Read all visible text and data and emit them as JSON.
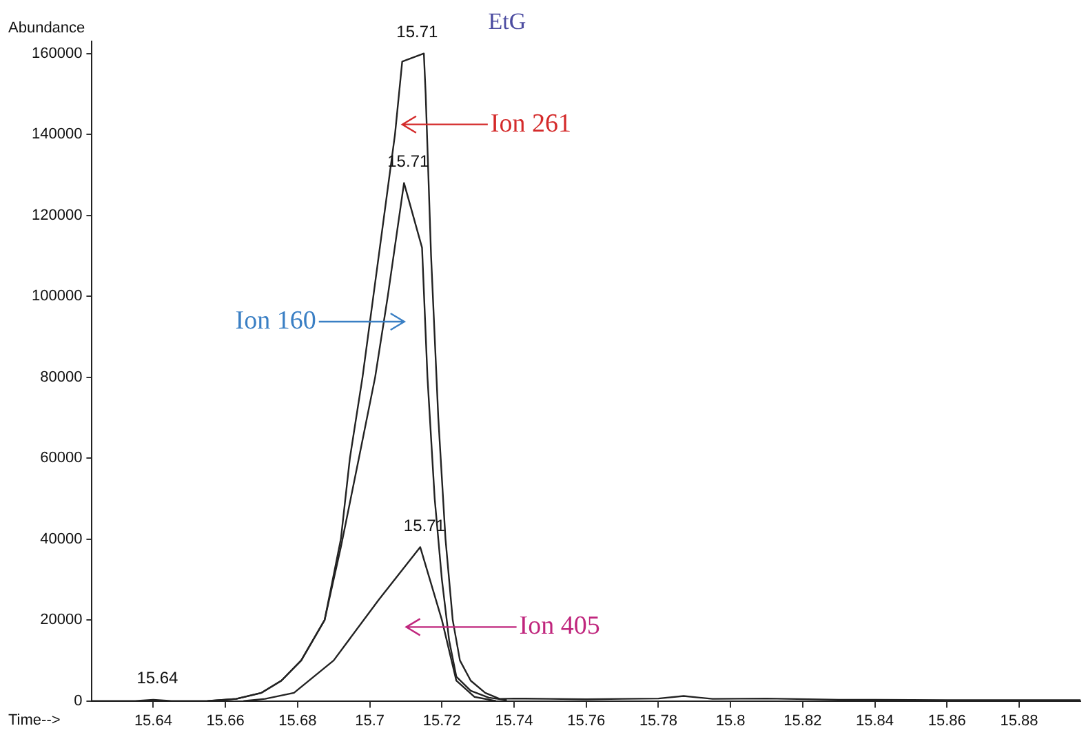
{
  "chart_data": {
    "type": "line",
    "title": "EtG",
    "xlabel": "Time-->",
    "ylabel": "Abundance",
    "xlim": [
      15.623,
      15.897
    ],
    "xticks": [
      15.64,
      15.66,
      15.68,
      15.7,
      15.72,
      15.74,
      15.76,
      15.78,
      15.8,
      15.82,
      15.84,
      15.86,
      15.88
    ],
    "ylim": [
      0,
      163000
    ],
    "yticks": [
      0,
      20000,
      40000,
      60000,
      80000,
      100000,
      120000,
      140000,
      160000
    ],
    "grid": false,
    "legend": false,
    "marker": "none",
    "line_style": "solid",
    "series": [
      {
        "name": "Ion 261",
        "color": "#222222",
        "x": [
          15.623,
          15.635,
          15.64,
          15.645,
          15.655,
          15.663,
          15.67,
          15.6755,
          15.681,
          15.6875,
          15.692,
          15.6945,
          15.698,
          15.701,
          15.707,
          15.709,
          15.715,
          15.7155,
          15.717,
          15.719,
          15.721,
          15.723,
          15.725,
          15.728,
          15.732,
          15.736,
          15.74,
          15.75,
          15.76,
          15.77,
          15.78,
          15.787,
          15.795,
          15.81,
          15.83,
          15.86,
          15.897
        ],
        "values": [
          0,
          0,
          300,
          0,
          0,
          500,
          2000,
          5000,
          10000,
          20000,
          40000,
          60000,
          80000,
          100000,
          140000,
          158000,
          160000,
          150000,
          110000,
          70000,
          40000,
          20000,
          10000,
          5000,
          2000,
          500,
          600,
          500,
          400,
          500,
          600,
          1200,
          500,
          600,
          300,
          200,
          200
        ]
      },
      {
        "color": "#222222",
        "x": [
          15.655,
          15.663,
          15.67,
          15.6755,
          15.681,
          15.6875,
          15.692,
          15.697,
          15.7015,
          15.705,
          15.7095,
          15.7145,
          15.716,
          15.718,
          15.72,
          15.722,
          15.724,
          15.728,
          15.733,
          15.738
        ],
        "values": [
          0,
          500,
          2000,
          5000,
          10000,
          20000,
          38000,
          60000,
          80000,
          100000,
          128000,
          112000,
          80000,
          50000,
          30000,
          15000,
          6000,
          2500,
          800,
          200
        ]
      },
      {
        "name": "Ion 405",
        "color": "#222222",
        "x": [
          15.665,
          15.671,
          15.679,
          15.69,
          15.7025,
          15.714,
          15.72,
          15.724,
          15.729,
          15.735
        ],
        "values": [
          0,
          500,
          2000,
          10000,
          25000,
          38000,
          20000,
          5000,
          1000,
          0
        ]
      }
    ],
    "annotations": [
      {
        "text": "15.71",
        "x": 15.712,
        "y": 160000
      },
      {
        "text": "15.71",
        "x": 15.7095,
        "y": 128000
      },
      {
        "text": "15.71",
        "x": 15.714,
        "y": 38000
      },
      {
        "text": "15.64",
        "x": 15.64,
        "y": 300
      },
      "Ion 160"
    ]
  }
}
